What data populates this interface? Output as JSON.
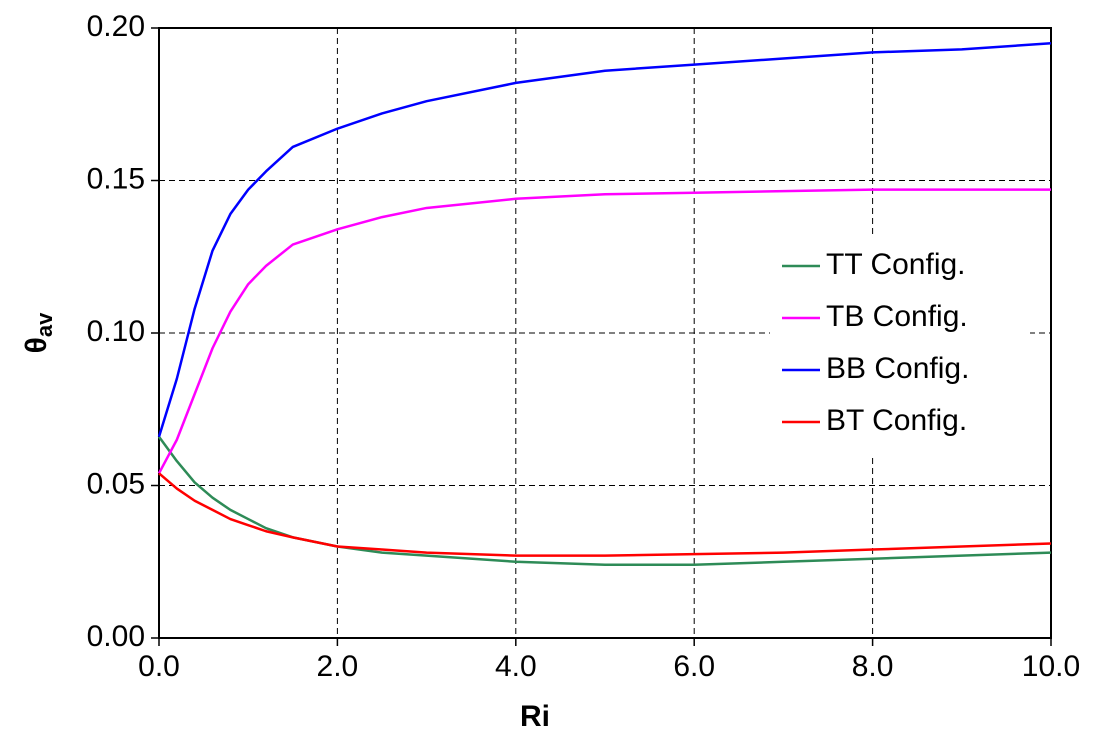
{
  "chart_data": {
    "type": "line",
    "xlabel": "Ri",
    "ylabel": "θ",
    "ylabel_subscript": "av",
    "x": [
      0,
      0.2,
      0.4,
      0.6,
      0.8,
      1.0,
      1.2,
      1.5,
      2,
      2.5,
      3,
      4,
      5,
      6,
      7,
      8,
      9,
      10
    ],
    "series": [
      {
        "name": "TT Config.",
        "color": "#2e8b57",
        "values": [
          0.066,
          0.058,
          0.051,
          0.046,
          0.042,
          0.039,
          0.036,
          0.033,
          0.03,
          0.028,
          0.027,
          0.025,
          0.024,
          0.024,
          0.025,
          0.026,
          0.027,
          0.028
        ]
      },
      {
        "name": "TB Config.",
        "color": "#ff00ff",
        "values": [
          0.054,
          0.065,
          0.08,
          0.095,
          0.107,
          0.116,
          0.122,
          0.129,
          0.134,
          0.138,
          0.141,
          0.144,
          0.1455,
          0.146,
          0.1465,
          0.147,
          0.147,
          0.147
        ]
      },
      {
        "name": "BB Config.",
        "color": "#0000ff",
        "values": [
          0.066,
          0.085,
          0.108,
          0.127,
          0.139,
          0.147,
          0.153,
          0.161,
          0.167,
          0.172,
          0.176,
          0.182,
          0.186,
          0.188,
          0.19,
          0.192,
          0.193,
          0.195
        ]
      },
      {
        "name": "BT Config.",
        "color": "#ff0000",
        "values": [
          0.054,
          0.049,
          0.045,
          0.042,
          0.039,
          0.037,
          0.035,
          0.033,
          0.03,
          0.029,
          0.028,
          0.027,
          0.027,
          0.0275,
          0.028,
          0.029,
          0.03,
          0.031
        ]
      }
    ],
    "xlim": [
      0,
      10
    ],
    "xticks": [
      {
        "value": 0,
        "label": "0.0"
      },
      {
        "value": 2,
        "label": "2.0"
      },
      {
        "value": 4,
        "label": "4.0"
      },
      {
        "value": 6,
        "label": "6.0"
      },
      {
        "value": 8,
        "label": "8.0"
      },
      {
        "value": 10,
        "label": "10.0"
      }
    ],
    "ylim": [
      0,
      0.2
    ],
    "yticks": [
      {
        "value": 0,
        "label": "0.00"
      },
      {
        "value": 0.05,
        "label": "0.05"
      },
      {
        "value": 0.1,
        "label": "0.10"
      },
      {
        "value": 0.15,
        "label": "0.15"
      },
      {
        "value": 0.2,
        "label": "0.20"
      }
    ],
    "grid": true,
    "legend": "right"
  }
}
